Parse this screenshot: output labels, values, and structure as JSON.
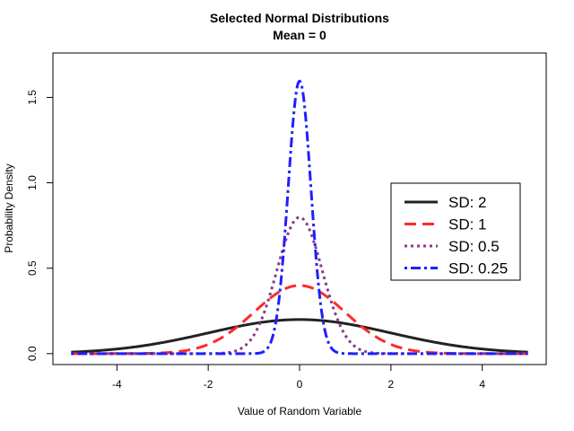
{
  "chart_data": {
    "type": "line",
    "title": "Selected Normal Distributions",
    "subtitle": "Mean = 0",
    "xlabel": "Value of Random Variable",
    "ylabel": "Probability Density",
    "xlim": [
      -5.4,
      5.4
    ],
    "ylim": [
      -0.064,
      1.76
    ],
    "xticks": [
      -4,
      -2,
      0,
      2,
      4
    ],
    "xtick_labels": [
      "-4",
      "-2",
      "0",
      "2",
      "4"
    ],
    "yticks": [
      0.0,
      0.5,
      1.0,
      1.5
    ],
    "ytick_labels": [
      "0.0",
      "0.5",
      "1.0",
      "1.5"
    ],
    "grid": false,
    "legend_position": "right",
    "x_range": [
      -5,
      5
    ],
    "mean": 0,
    "series": [
      {
        "name": "SD: 2",
        "sd": 2,
        "color": "#222222",
        "dash": "solid",
        "peak": 0.199
      },
      {
        "name": "SD: 1",
        "sd": 1,
        "color": "#ff2a2a",
        "dash": "dashed",
        "peak": 0.399
      },
      {
        "name": "SD: 0.5",
        "sd": 0.5,
        "color": "#8b3a8b",
        "dash": "dotted",
        "peak": 0.798
      },
      {
        "name": "SD: 0.25",
        "sd": 0.25,
        "color": "#1f1fff",
        "dash": "dotdash",
        "peak": 1.596
      }
    ]
  }
}
